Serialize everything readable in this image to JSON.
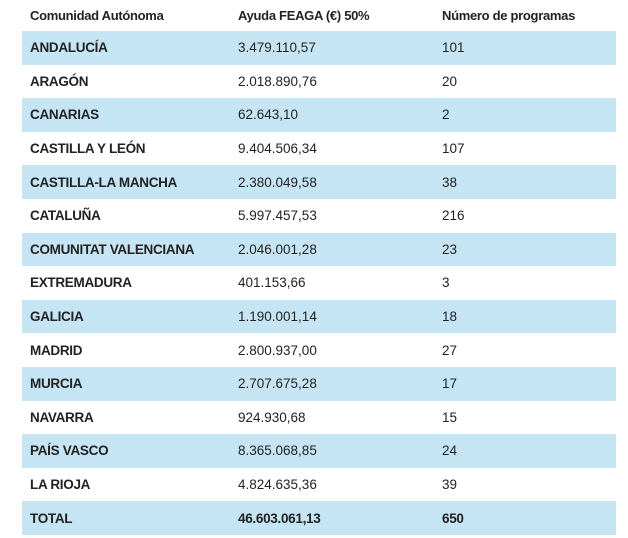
{
  "table": {
    "headers": [
      "Comunidad Autónoma",
      "Ayuda FEAGA (€) 50%",
      "Número de programas"
    ],
    "rows": [
      [
        "ANDALUCÍA",
        "3.479.110,57",
        "101"
      ],
      [
        "ARAGÓN",
        "2.018.890,76",
        "20"
      ],
      [
        "CANARIAS",
        "62.643,10",
        "2"
      ],
      [
        "CASTILLA Y LEÓN",
        "9.404.506,34",
        "107"
      ],
      [
        "CASTILLA-LA MANCHA",
        "2.380.049,58",
        "38"
      ],
      [
        "CATALUÑA",
        "5.997.457,53",
        "216"
      ],
      [
        "COMUNITAT VALENCIANA",
        "2.046.001,28",
        "23"
      ],
      [
        "EXTREMADURA",
        "401.153,66",
        "3"
      ],
      [
        "GALICIA",
        "1.190.001,14",
        "18"
      ],
      [
        "MADRID",
        "2.800.937,00",
        "27"
      ],
      [
        "MURCIA",
        "2.707.675,28",
        "17"
      ],
      [
        "NAVARRA",
        "924.930,68",
        "15"
      ],
      [
        "PAÍS VASCO",
        "8.365.068,85",
        "24"
      ],
      [
        "LA RIOJA",
        "4.824.635,36",
        "39"
      ]
    ],
    "total": [
      "TOTAL",
      "46.603.061,13",
      "650"
    ]
  }
}
